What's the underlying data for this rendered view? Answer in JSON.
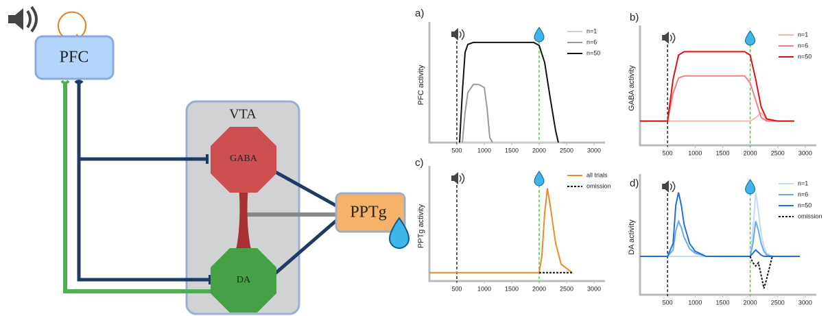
{
  "diagram": {
    "nodes": [
      "PFC",
      "VTA",
      "GABA",
      "DA",
      "PPTg"
    ]
  },
  "chart_data": [
    {
      "type": "line",
      "panel": "a)",
      "y_label": "PFC activity",
      "xlim": [
        0,
        3200
      ],
      "ylim": [
        0,
        1.15
      ],
      "xticks": [
        500,
        1000,
        1500,
        2000,
        2500,
        3000
      ],
      "legend": "upper right",
      "markers": [
        {
          "x": 500,
          "color": "#222222"
        },
        {
          "x": 2000,
          "color": "#33dd33"
        }
      ],
      "x": [
        500,
        550,
        600,
        650,
        700,
        800,
        900,
        1000,
        1050,
        1100,
        1150,
        1900,
        2000,
        2100,
        2200,
        2300,
        2350,
        2400
      ],
      "series": [
        {
          "name": "n=1",
          "color": "#d0d0d0",
          "values": [
            0,
            0,
            0,
            0,
            0,
            0,
            0,
            0,
            0,
            0,
            0,
            0,
            0,
            0,
            0,
            0,
            0,
            0
          ]
        },
        {
          "name": "n=6",
          "color": "#999999",
          "values": [
            null,
            null,
            0,
            0.3,
            0.5,
            0.58,
            0.58,
            0.55,
            0.35,
            0.05,
            0,
            null,
            null,
            null,
            null,
            null,
            null,
            null
          ]
        },
        {
          "name": "n=50",
          "color": "#111111",
          "values": [
            null,
            0,
            0.5,
            0.9,
            0.98,
            1,
            1,
            1,
            1,
            1,
            1,
            1,
            0.97,
            0.8,
            0.45,
            0.12,
            0,
            null
          ]
        }
      ]
    },
    {
      "type": "line",
      "panel": "b)",
      "y_label": "GABA activity",
      "xlim": [
        0,
        3200
      ],
      "ylim": [
        -0.35,
        1.3
      ],
      "xticks": [
        500,
        1000,
        1500,
        2000,
        2500,
        3000
      ],
      "legend": "upper right",
      "markers": [
        {
          "x": 500,
          "color": "#222222"
        },
        {
          "x": 2000,
          "color": "#33dd33"
        }
      ],
      "x": [
        0,
        500,
        600,
        700,
        800,
        1000,
        1500,
        1900,
        2000,
        2100,
        2200,
        2300,
        2500,
        2800
      ],
      "series": [
        {
          "name": "n=1",
          "color": "#f4b6b6",
          "values": [
            0,
            0,
            0,
            0,
            0,
            0,
            0,
            0,
            0,
            0.05,
            0.12,
            0.02,
            0,
            0
          ]
        },
        {
          "name": "n=6",
          "color": "#f08080",
          "values": [
            0,
            0,
            0.4,
            0.62,
            0.65,
            0.65,
            0.65,
            0.65,
            0.55,
            0.3,
            0.05,
            0,
            0,
            0
          ]
        },
        {
          "name": "n=50",
          "color": "#e01010",
          "values": [
            0,
            0,
            0.6,
            0.95,
            1,
            1,
            1,
            1,
            0.95,
            0.6,
            0.2,
            0.03,
            0,
            0
          ]
        }
      ]
    },
    {
      "type": "line",
      "panel": "c)",
      "y_label": "PPTg activity",
      "xlim": [
        0,
        3200
      ],
      "ylim": [
        -0.1,
        1.2
      ],
      "xticks": [
        500,
        1000,
        1500,
        2000,
        2500,
        3000
      ],
      "legend": "upper right",
      "markers": [
        {
          "x": 500,
          "color": "#222222"
        },
        {
          "x": 2000,
          "color": "#33dd33"
        }
      ],
      "x": [
        0,
        2000,
        2050,
        2100,
        2150,
        2200,
        2300,
        2400,
        2600
      ],
      "series": [
        {
          "name": "all trials",
          "color": "#e8892a",
          "values": [
            0,
            0,
            0.2,
            0.7,
            1,
            0.8,
            0.35,
            0.1,
            0
          ]
        },
        {
          "name": "omission",
          "color": "#111111",
          "dashed": true,
          "values": [
            null,
            0,
            0,
            0,
            0,
            0,
            0,
            0,
            0
          ]
        }
      ]
    },
    {
      "type": "line",
      "panel": "d)",
      "y_label": "DA activity",
      "xlim": [
        0,
        3200
      ],
      "ylim": [
        -0.6,
        1.2
      ],
      "xticks": [
        500,
        1000,
        1500,
        2000,
        2500,
        3000
      ],
      "legend": "upper right",
      "markers": [
        {
          "x": 500,
          "color": "#222222"
        },
        {
          "x": 2000,
          "color": "#33dd33"
        }
      ],
      "x": [
        0,
        500,
        600,
        650,
        700,
        750,
        800,
        900,
        1000,
        1200,
        1900,
        2000,
        2050,
        2100,
        2150,
        2200,
        2250,
        2300,
        2400,
        2500,
        2900
      ],
      "series": [
        {
          "name": "n=1",
          "color": "#c5daf5",
          "values": [
            0,
            0,
            0,
            0,
            0,
            0,
            0,
            0,
            0,
            0,
            0,
            0,
            0.4,
            1,
            0.7,
            0.35,
            0.15,
            0.05,
            0,
            0,
            0
          ]
        },
        {
          "name": "n=6",
          "color": "#66aaee",
          "values": [
            0,
            0,
            0.1,
            0.4,
            0.55,
            0.45,
            0.3,
            0.12,
            0.05,
            0,
            0,
            0,
            0.2,
            0.55,
            0.4,
            0.2,
            0.08,
            0.02,
            0,
            0,
            0
          ]
        },
        {
          "name": "n=50",
          "color": "#1f6fd6",
          "values": [
            0,
            0,
            0.2,
            0.8,
            1,
            0.8,
            0.5,
            0.2,
            0.08,
            0,
            0,
            0,
            0.05,
            0.1,
            0.06,
            0.02,
            0,
            0,
            0,
            0,
            0
          ]
        },
        {
          "name": "omission",
          "color": "#111111",
          "dashed": true,
          "values": [
            null,
            null,
            null,
            null,
            null,
            null,
            null,
            null,
            null,
            null,
            null,
            0,
            -0.1,
            -0.15,
            -0.1,
            -0.3,
            -0.5,
            -0.35,
            0,
            null,
            null
          ]
        }
      ]
    }
  ]
}
